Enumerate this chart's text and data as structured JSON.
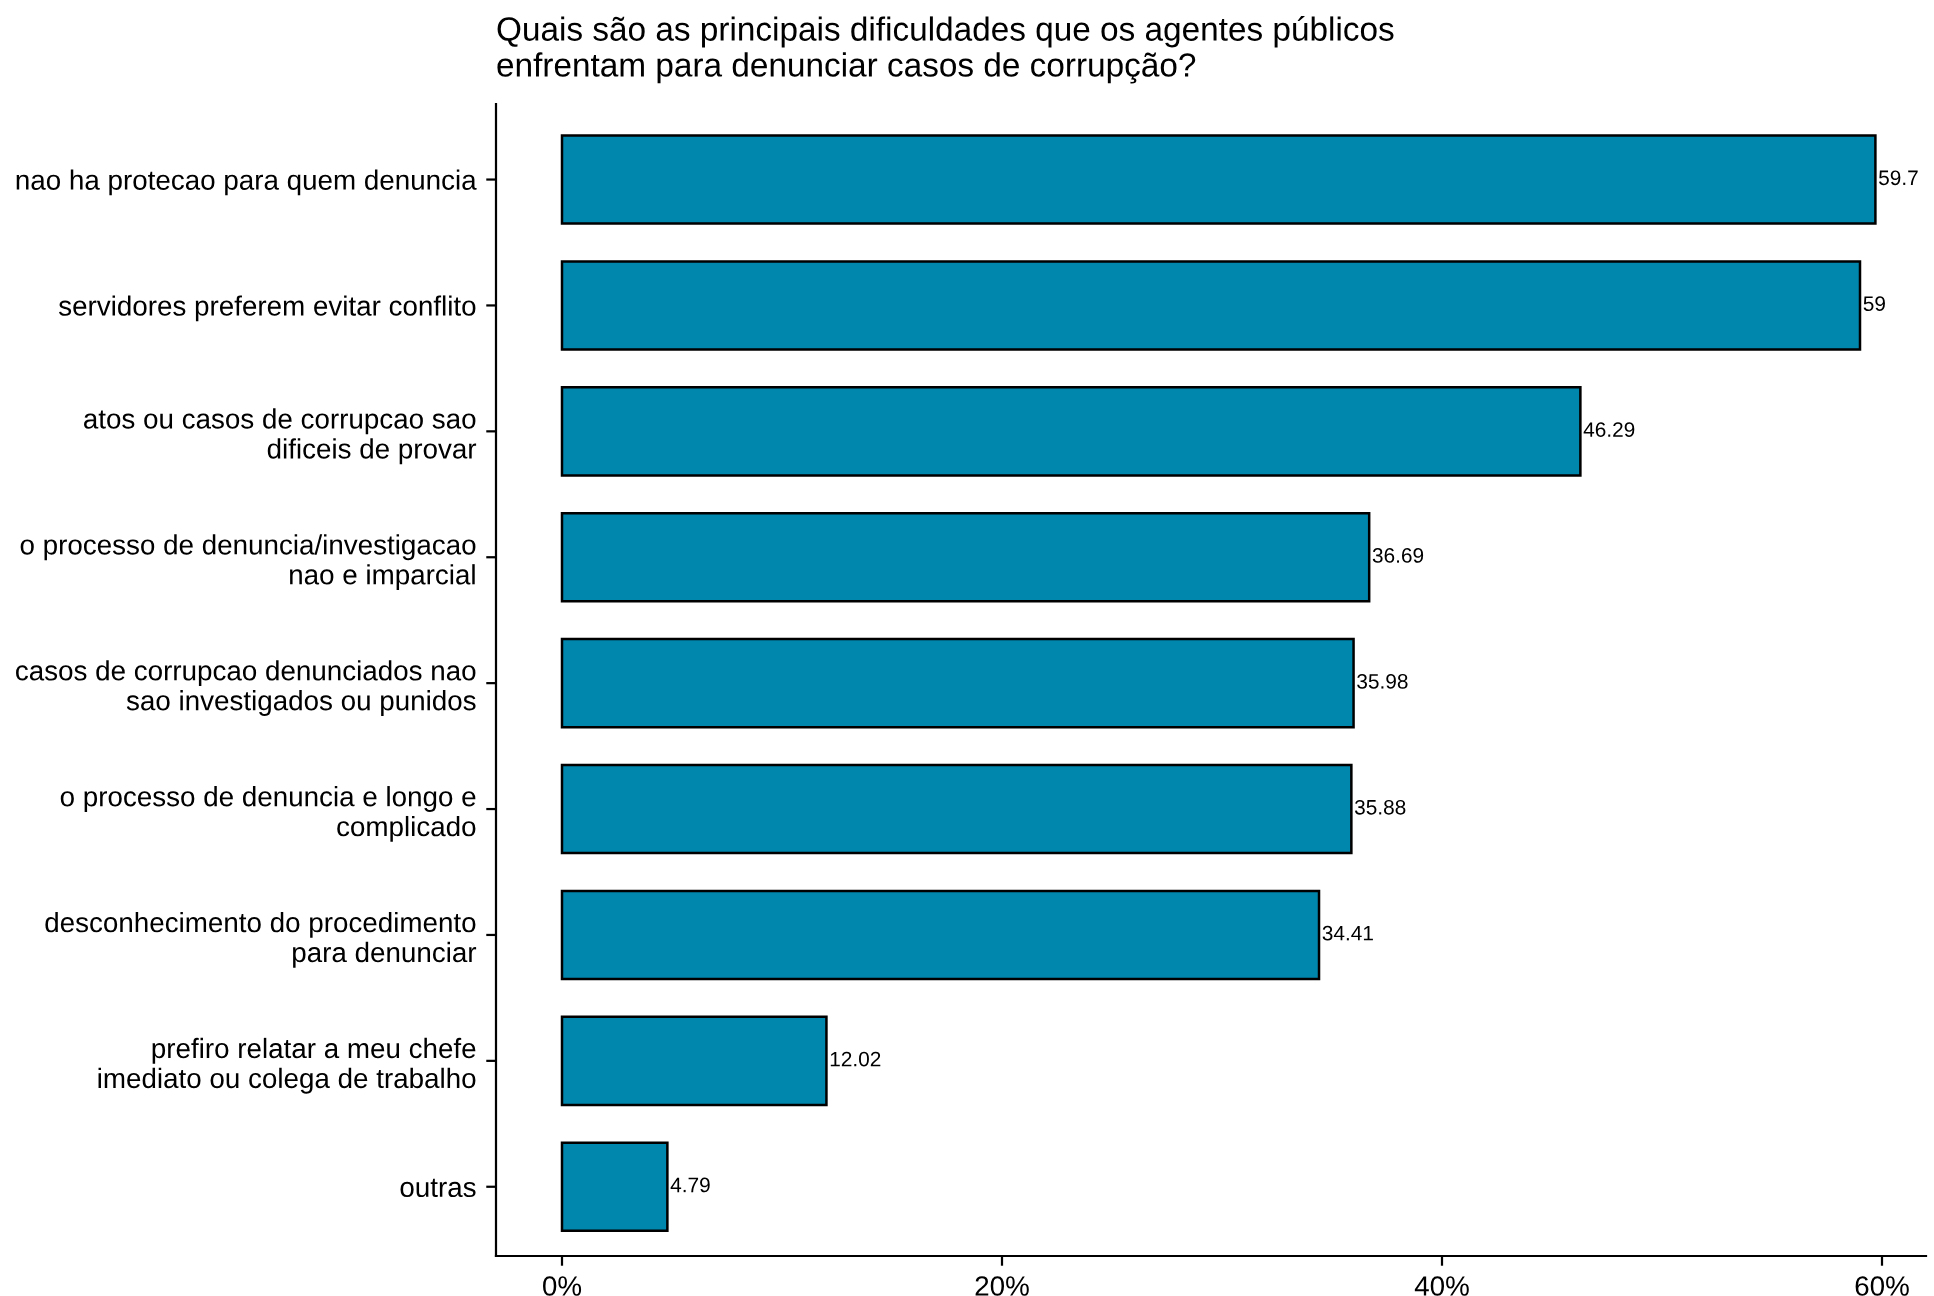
{
  "chart_data": {
    "type": "bar",
    "orientation": "horizontal",
    "title": "Quais são as principais dificuldades que os agentes públicos\nenfrentam para denunciar casos de corrupção?",
    "categories": [
      "nao ha protecao para quem denuncia",
      "servidores preferem evitar conflito",
      "atos ou casos de corrupcao sao\ndificeis de provar",
      "o processo de denuncia/investigacao\nnao e imparcial",
      "casos de corrupcao denunciados nao\nsao investigados ou punidos",
      "o processo de denuncia e longo e\ncomplicado",
      "desconhecimento do procedimento\npara denunciar",
      "prefiro relatar a meu chefe\nimediato ou colega de trabalho",
      "outras"
    ],
    "values": [
      59.7,
      59,
      46.29,
      36.69,
      35.98,
      35.88,
      34.41,
      12.02,
      4.79
    ],
    "color": "#0087ae",
    "data_labels": true,
    "xlim": [
      -3,
      62
    ],
    "xticks": [
      {
        "value": 0,
        "label": "0%"
      },
      {
        "value": 20,
        "label": "20%"
      },
      {
        "value": 40,
        "label": "40%"
      },
      {
        "value": 60,
        "label": "60%"
      }
    ],
    "grid": false,
    "legend": false
  }
}
